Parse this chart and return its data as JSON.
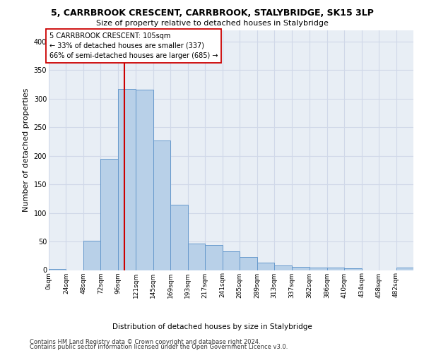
{
  "title": "5, CARRBROOK CRESCENT, CARRBROOK, STALYBRIDGE, SK15 3LP",
  "subtitle": "Size of property relative to detached houses in Stalybridge",
  "xlabel": "Distribution of detached houses by size in Stalybridge",
  "ylabel": "Number of detached properties",
  "bar_color": "#b8d0e8",
  "bar_edge_color": "#6699cc",
  "grid_color": "#d0d8e8",
  "background_color": "#e8eef5",
  "annotation_box_color": "#ffffff",
  "annotation_box_edge": "#cc0000",
  "vline_color": "#cc0000",
  "property_size": 105,
  "annotation_text_line1": "5 CARRBROOK CRESCENT: 105sqm",
  "annotation_text_line2": "← 33% of detached houses are smaller (337)",
  "annotation_text_line3": "66% of semi-detached houses are larger (685) →",
  "bin_edges": [
    0,
    24,
    48,
    72,
    96,
    121,
    145,
    169,
    193,
    217,
    241,
    265,
    289,
    313,
    337,
    362,
    386,
    410,
    434,
    458,
    482,
    506
  ],
  "bin_labels": [
    "0sqm",
    "24sqm",
    "48sqm",
    "72sqm",
    "96sqm",
    "121sqm",
    "145sqm",
    "169sqm",
    "193sqm",
    "217sqm",
    "241sqm",
    "265sqm",
    "289sqm",
    "313sqm",
    "337sqm",
    "362sqm",
    "386sqm",
    "410sqm",
    "434sqm",
    "458sqm",
    "482sqm"
  ],
  "bar_heights": [
    2,
    0,
    51,
    195,
    317,
    315,
    227,
    114,
    46,
    44,
    33,
    23,
    13,
    8,
    5,
    4,
    4,
    3,
    0,
    0,
    4
  ],
  "ylim": [
    0,
    420
  ],
  "yticks": [
    0,
    50,
    100,
    150,
    200,
    250,
    300,
    350,
    400
  ],
  "footer_line1": "Contains HM Land Registry data © Crown copyright and database right 2024.",
  "footer_line2": "Contains public sector information licensed under the Open Government Licence v3.0.",
  "title_fontsize": 9,
  "subtitle_fontsize": 8,
  "ylabel_fontsize": 8,
  "annotation_fontsize": 7,
  "tick_fontsize": 6.5,
  "xlabel_fontsize": 7.5,
  "footer_fontsize": 6
}
